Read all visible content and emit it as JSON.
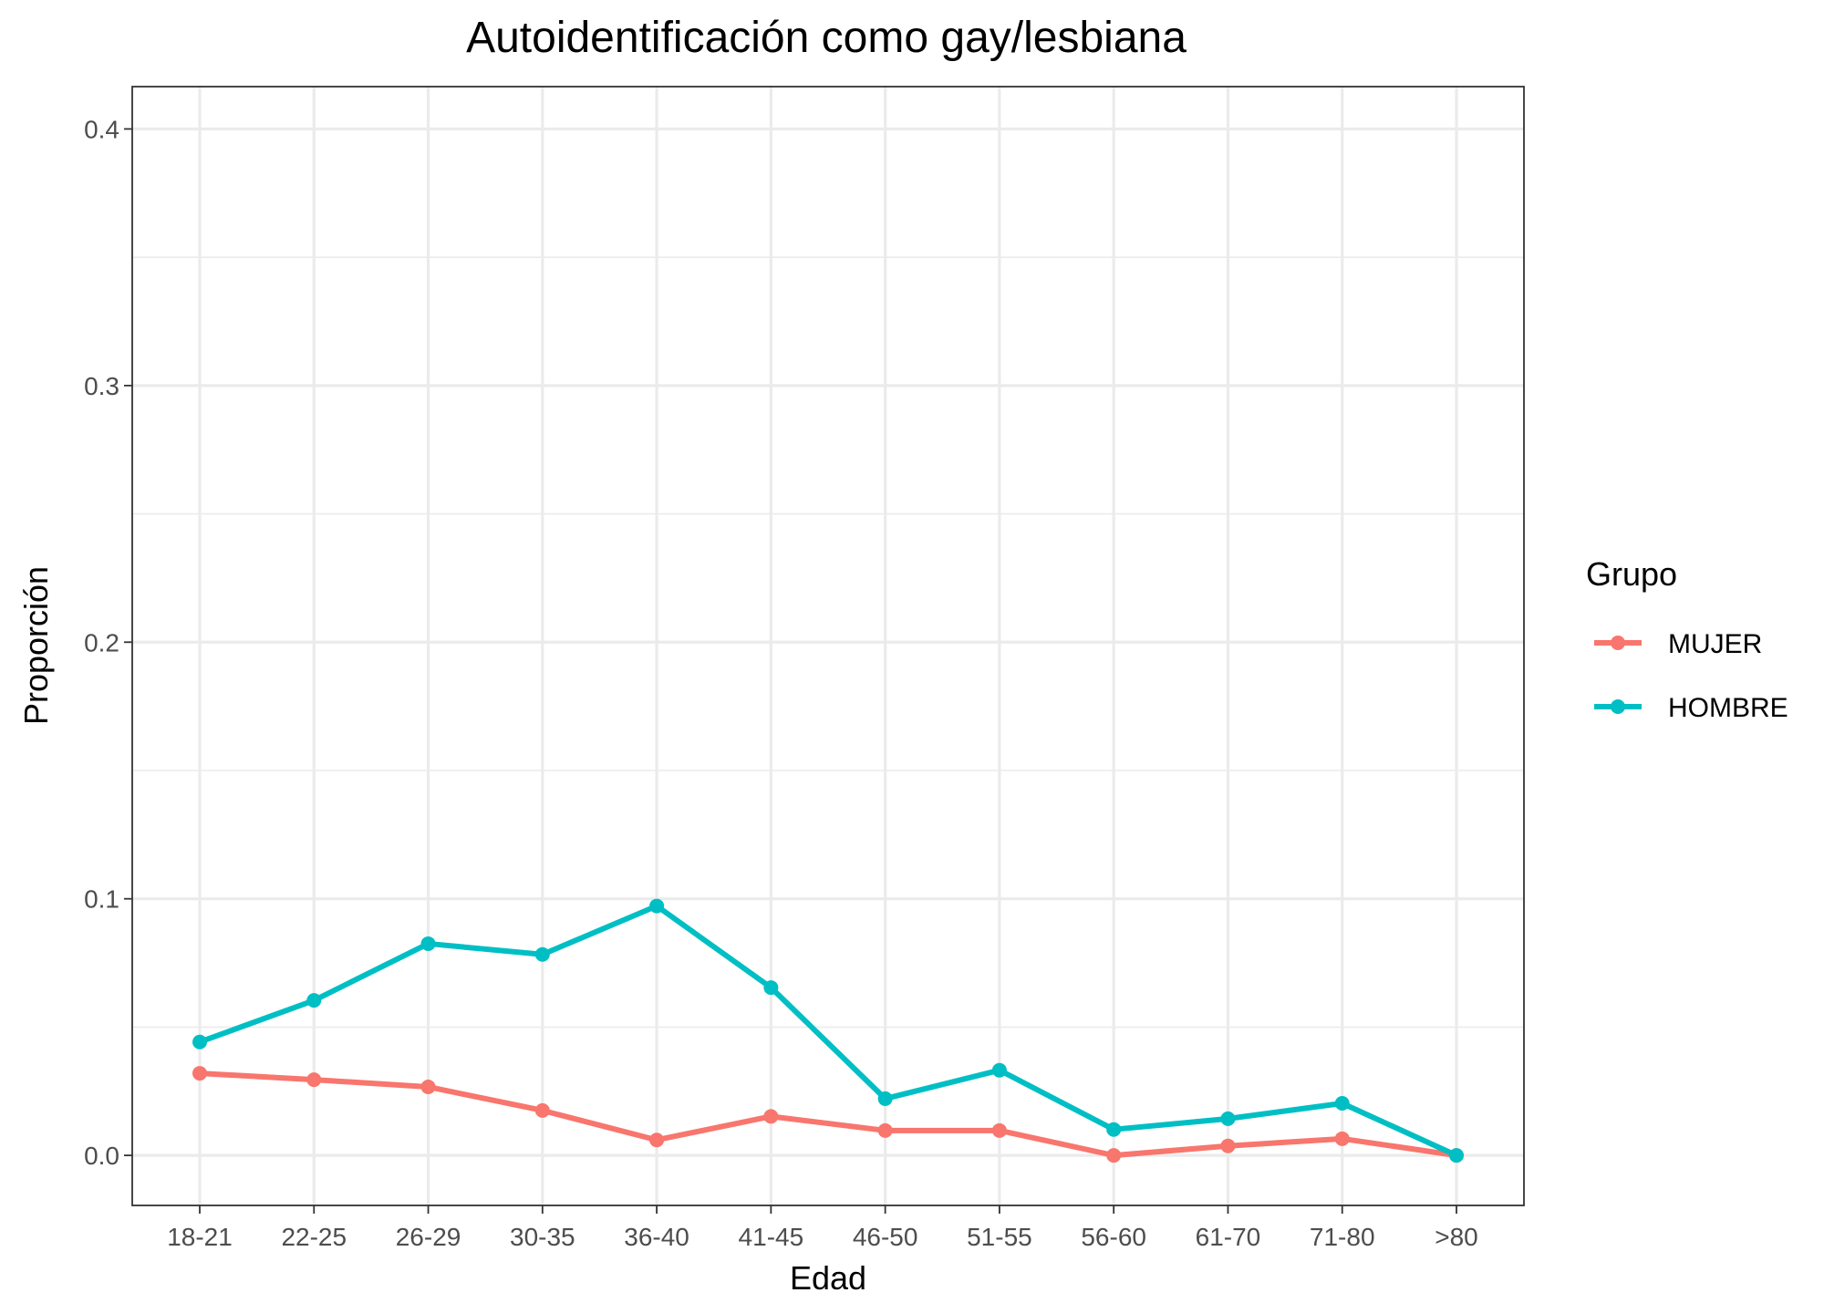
{
  "chart_data": {
    "type": "line",
    "title": "Autoidentificación como gay/lesbiana",
    "xlabel": "Edad",
    "ylabel": "Proporción",
    "categories": [
      "18-21",
      "22-25",
      "26-29",
      "30-35",
      "36-40",
      "41-45",
      "46-50",
      "51-55",
      "56-60",
      "61-70",
      "71-80",
      ">80"
    ],
    "ylim": [
      -0.0195,
      0.4165
    ],
    "yticks": [
      0.0,
      0.1,
      0.2,
      0.3,
      0.4
    ],
    "ytick_labels": [
      "0.0",
      "0.1",
      "0.2",
      "0.3",
      "0.4"
    ],
    "grid": true,
    "legend": {
      "title": "Grupo",
      "placement": "right"
    },
    "series": [
      {
        "name": "MUJER",
        "color": "#F8766D",
        "values": [
          0.032,
          0.0295,
          0.0267,
          0.0175,
          0.006,
          0.0152,
          0.0097,
          0.0097,
          0.0,
          0.0037,
          0.0065,
          0.0
        ]
      },
      {
        "name": "HOMBRE",
        "color": "#00BFC4",
        "values": [
          0.0442,
          0.0604,
          0.0825,
          0.0783,
          0.0972,
          0.0654,
          0.0221,
          0.0332,
          0.0101,
          0.0143,
          0.0203,
          0.0
        ]
      }
    ]
  }
}
